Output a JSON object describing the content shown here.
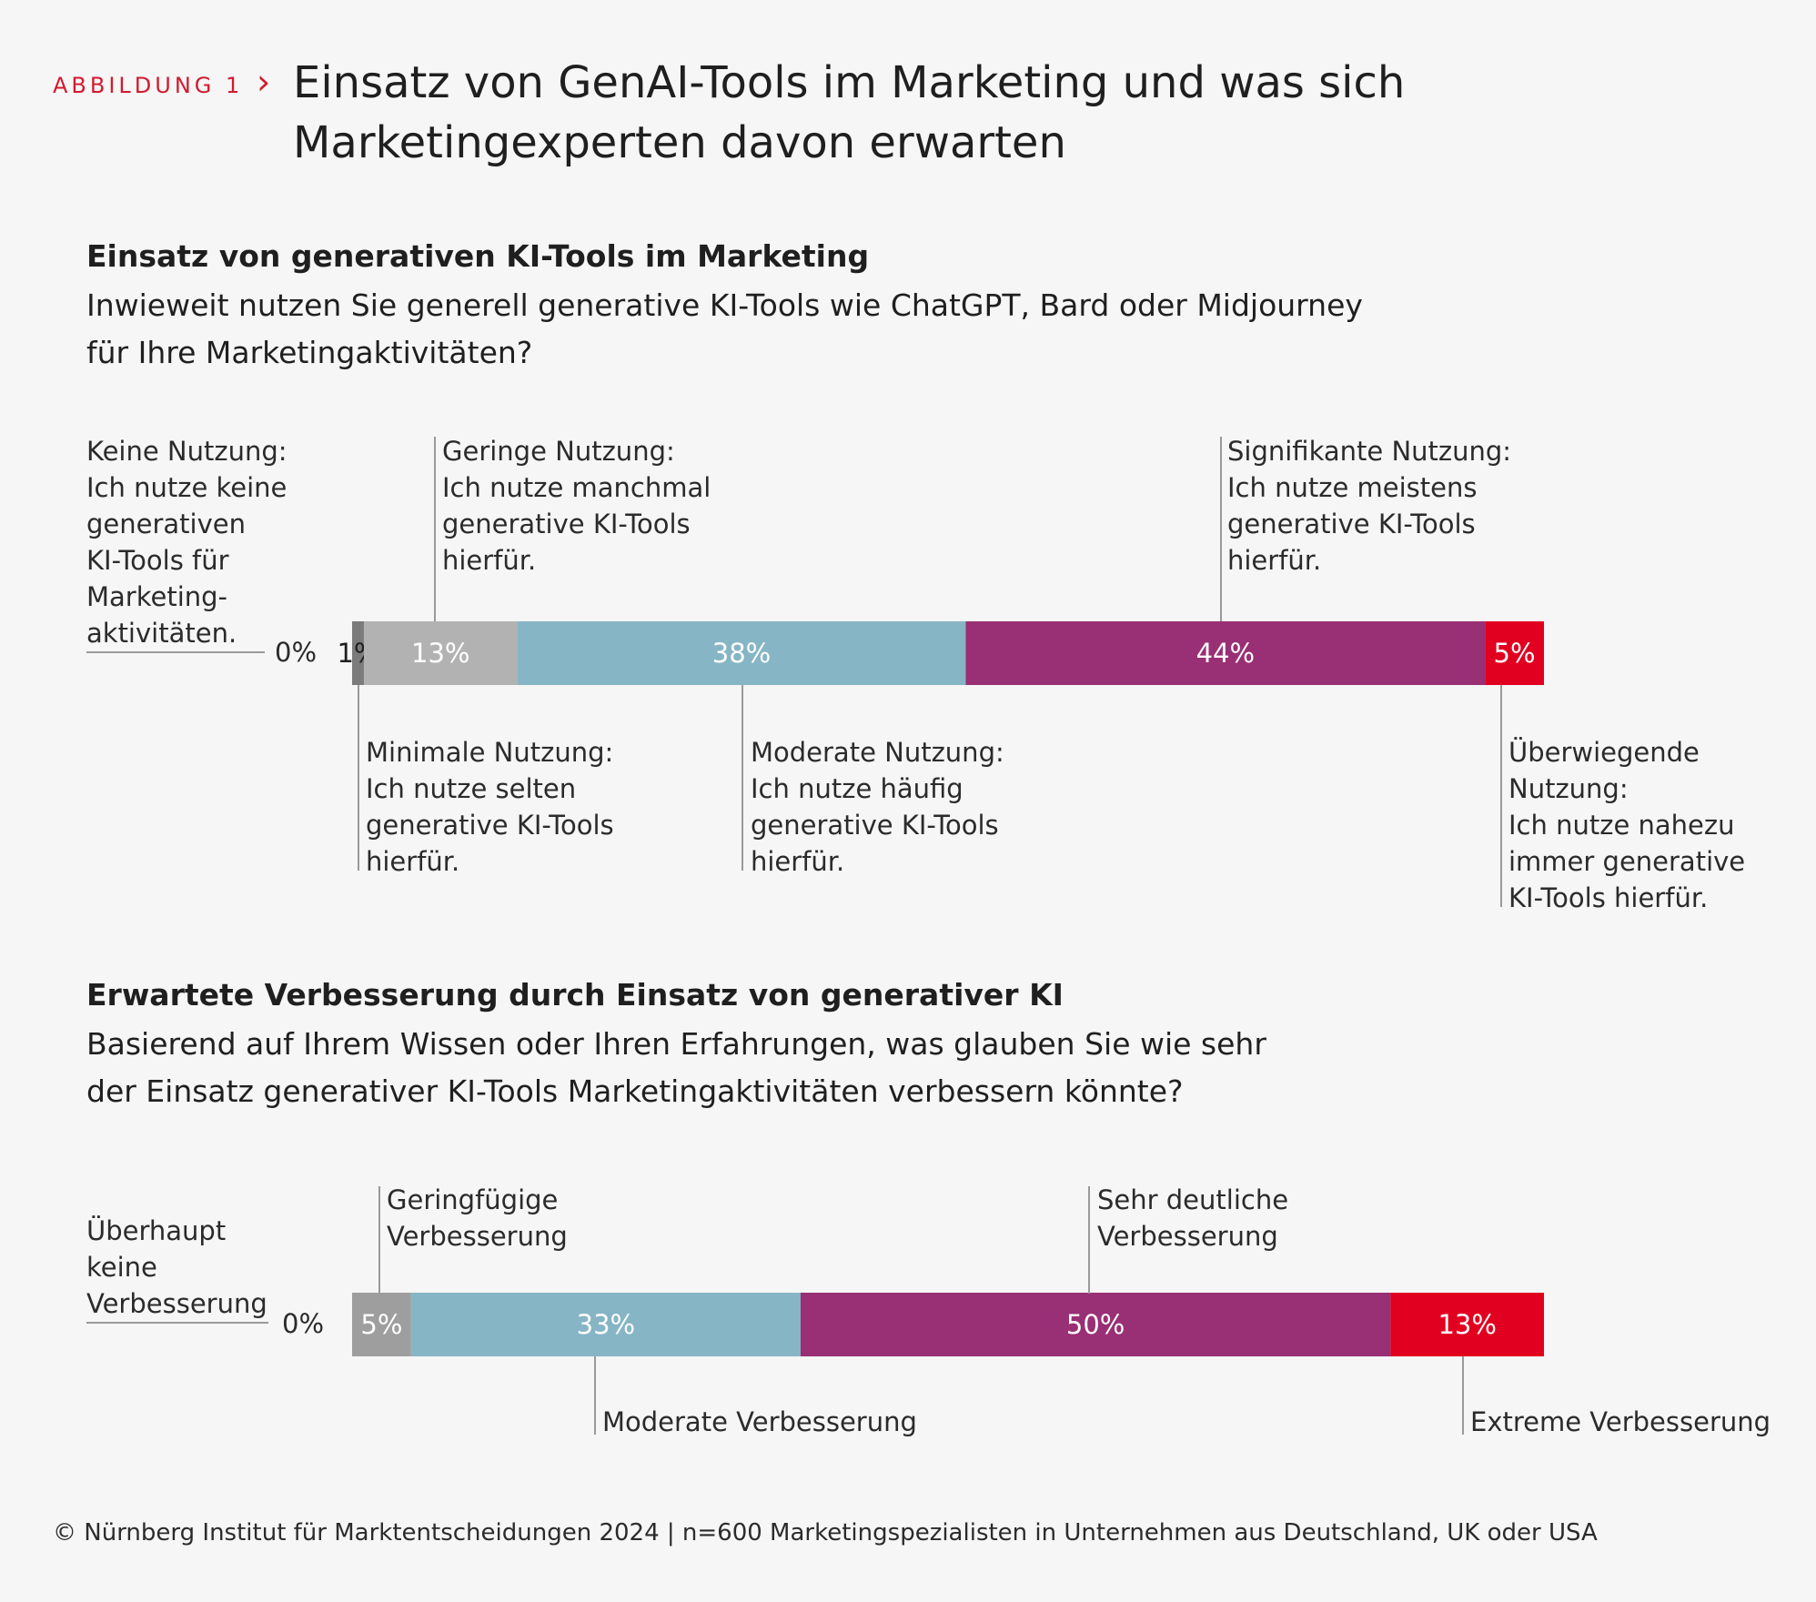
{
  "header": {
    "tag": "ABBILDUNG 1",
    "chevron": "›",
    "title": "Einsatz von GenAI-Tools im Marketing und was sich Marketingexperten davon erwarten"
  },
  "section1": {
    "title": "Einsatz von generativen KI-Tools im Marketing",
    "question": "Inwieweit nutzen Sie generell generative KI-Tools wie ChatGPT, Bard oder Midjourney für Ihre Marketingaktivitäten?",
    "zero_label": "0%",
    "labels": {
      "keine": "Keine Nutzung:\nIch nutze keine\ngenerativen\nKI-Tools für\nMarketing-\naktivitäten.",
      "minimal": "Minimale Nutzung:\nIch nutze selten\ngenerative KI-Tools\nhierfür.",
      "gering": "Geringe Nutzung:\nIch nutze manchmal\ngenerative KI-Tools\nhierfür.",
      "moderat": "Moderate Nutzung:\nIch nutze häufig\ngenerative KI-Tools\nhierfür.",
      "signifikant": "Signifikante Nutzung:\nIch nutze meistens\ngenerative KI-Tools\nhierfür.",
      "ueberwiegend": "Überwiegende\nNutzung:\nIch nutze nahezu\nimmer generative\nKI-Tools hierfür."
    }
  },
  "section2": {
    "title": "Erwartete Verbesserung durch Einsatz von generativer KI",
    "question": "Basierend auf Ihrem Wissen oder Ihren Erfahrungen, was glauben Sie wie sehr der Einsatz generativer KI-Tools Marketingaktivitäten verbessern könnte?",
    "zero_label": "0%",
    "labels": {
      "keine": "Überhaupt\nkeine\nVerbesserung",
      "geringfuegig": "Geringfügige\nVerbesserung",
      "moderat": "Moderate Verbesserung",
      "deutlich": "Sehr deutliche\nVerbesserung",
      "extrem": "Extreme Verbesserung"
    }
  },
  "chart_data": [
    {
      "type": "bar",
      "orientation": "horizontal-stacked",
      "title": "Einsatz von generativen KI-Tools im Marketing",
      "categories": [
        "Keine Nutzung",
        "Minimale Nutzung",
        "Geringe Nutzung",
        "Moderate Nutzung",
        "Signifikante Nutzung",
        "Überwiegende Nutzung"
      ],
      "values": [
        0,
        1,
        13,
        38,
        44,
        5
      ],
      "value_labels": [
        "0%",
        "1%",
        "13%",
        "38%",
        "44%",
        "5%"
      ],
      "colors": [
        "#8a8a8a",
        "#7b7b7b",
        "#b2b2b2",
        "#86b5c5",
        "#992f74",
        "#e10020"
      ],
      "label_colors": [
        "#2b2b2b",
        "#1f1f1f",
        "#ffffff",
        "#ffffff",
        "#ffffff",
        "#ffffff"
      ]
    },
    {
      "type": "bar",
      "orientation": "horizontal-stacked",
      "title": "Erwartete Verbesserung durch Einsatz von generativer KI",
      "categories": [
        "Überhaupt keine Verbesserung",
        "Geringfügige Verbesserung",
        "Moderate Verbesserung",
        "Sehr deutliche Verbesserung",
        "Extreme Verbesserung"
      ],
      "values": [
        0,
        5,
        33,
        50,
        13
      ],
      "value_labels": [
        "0%",
        "5%",
        "33%",
        "50%",
        "13%"
      ],
      "colors": [
        "#8a8a8a",
        "#9e9e9e",
        "#86b5c5",
        "#992f74",
        "#e10020"
      ],
      "label_colors": [
        "#2b2b2b",
        "#ffffff",
        "#ffffff",
        "#ffffff",
        "#ffffff"
      ]
    }
  ],
  "footer": "© Nürnberg Institut für Marktentscheidungen 2024 | n=600 Marketingspezialisten in Unternehmen aus Deutschland, UK oder USA"
}
